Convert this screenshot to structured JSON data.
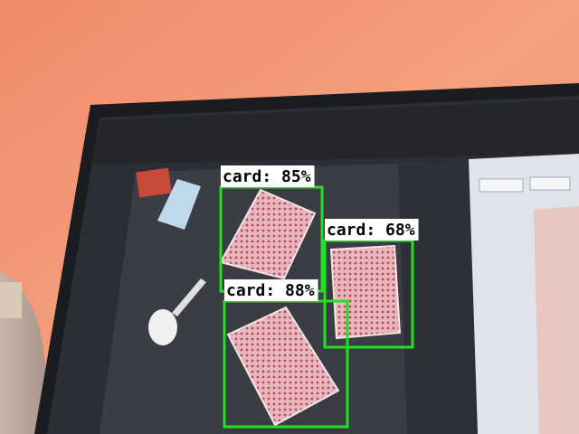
{
  "detections": [
    {
      "label": "card: 85%"
    },
    {
      "label": "card: 68%"
    },
    {
      "label": "card: 88%"
    }
  ]
}
